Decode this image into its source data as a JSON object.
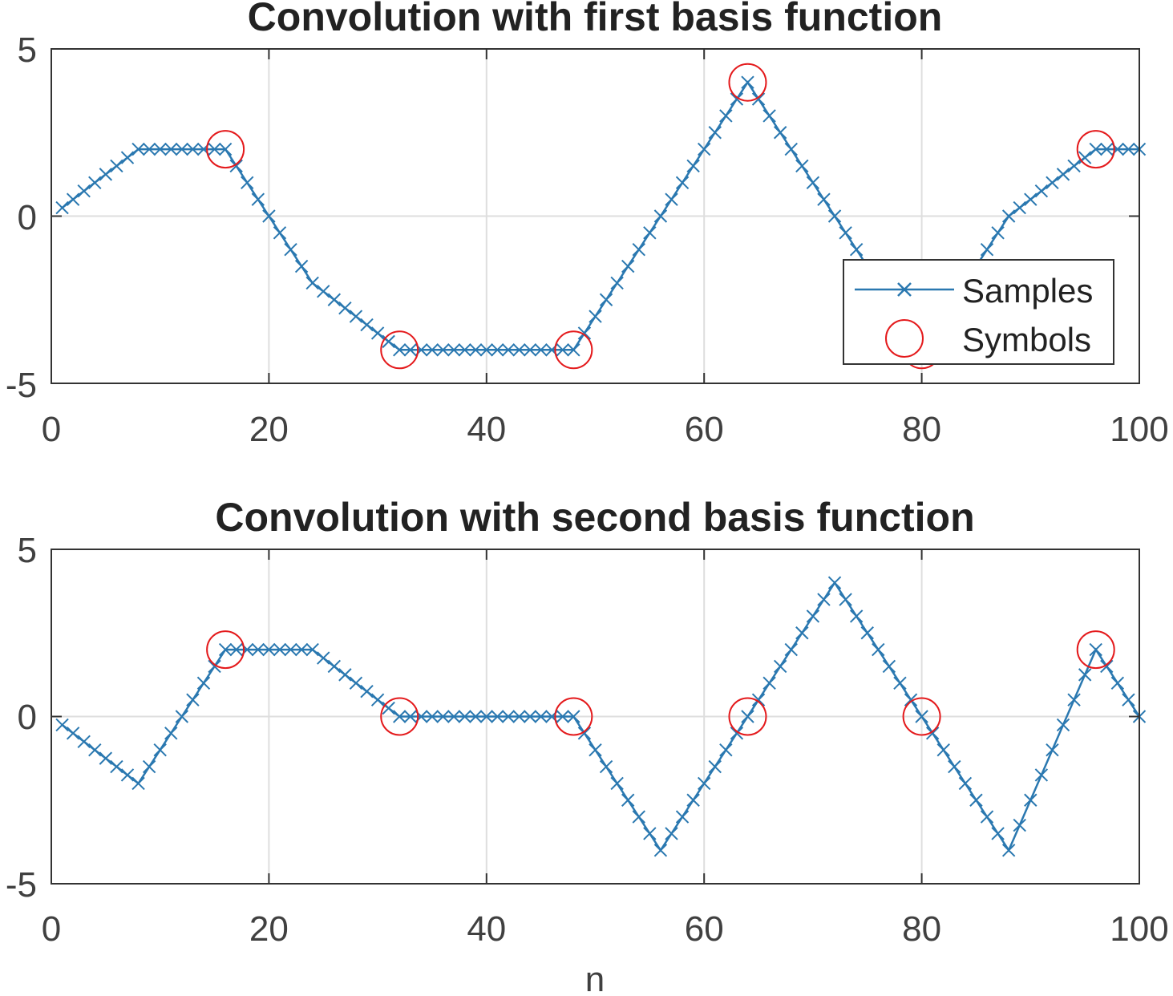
{
  "colors": {
    "samples": "#2a78b0",
    "symbols": "#e41a1c",
    "axis": "#333333",
    "grid": "#dedede",
    "text": "#404040"
  },
  "chart_data": [
    {
      "type": "line",
      "title": "Convolution with first basis function",
      "xlabel": "",
      "ylabel": "",
      "xlim": [
        0,
        100
      ],
      "ylim": [
        -5,
        5
      ],
      "xticks": [
        "0",
        "20",
        "40",
        "60",
        "80",
        "100"
      ],
      "yticks": [
        "5",
        "0",
        "-5"
      ],
      "grid": true,
      "legend": {
        "position": "lower-right",
        "entries": [
          "Samples",
          "Symbols"
        ]
      },
      "series": [
        {
          "name": "Samples",
          "marker": "x",
          "keypoints_n": [
            1,
            8,
            16,
            20,
            24,
            32,
            48,
            56,
            64,
            72,
            80,
            88,
            96,
            100
          ],
          "keypoints_value": [
            0.25,
            2,
            2,
            0,
            -2,
            -4,
            -4,
            0,
            4,
            0,
            -4,
            0,
            2,
            2
          ]
        },
        {
          "name": "Symbols",
          "marker": "o",
          "x": [
            16,
            32,
            48,
            64,
            80,
            96
          ],
          "values": [
            2,
            -4,
            -4,
            4,
            -4,
            2
          ]
        }
      ]
    },
    {
      "type": "line",
      "title": "Convolution with second basis function",
      "xlabel": "n",
      "ylabel": "",
      "xlim": [
        0,
        100
      ],
      "ylim": [
        -5,
        5
      ],
      "xticks": [
        "0",
        "20",
        "40",
        "60",
        "80",
        "100"
      ],
      "yticks": [
        "5",
        "0",
        "-5"
      ],
      "grid": true,
      "series": [
        {
          "name": "Samples",
          "marker": "x",
          "keypoints_n": [
            1,
            8,
            16,
            24,
            32,
            48,
            56,
            64,
            72,
            80,
            88,
            96,
            100
          ],
          "keypoints_value": [
            -0.25,
            -2,
            2,
            2,
            0,
            0,
            -4,
            0,
            4,
            0,
            -4,
            2,
            0
          ]
        },
        {
          "name": "Symbols",
          "marker": "o",
          "x": [
            16,
            32,
            48,
            64,
            80,
            96
          ],
          "values": [
            2,
            0,
            0,
            0,
            0,
            2
          ]
        }
      ]
    }
  ]
}
